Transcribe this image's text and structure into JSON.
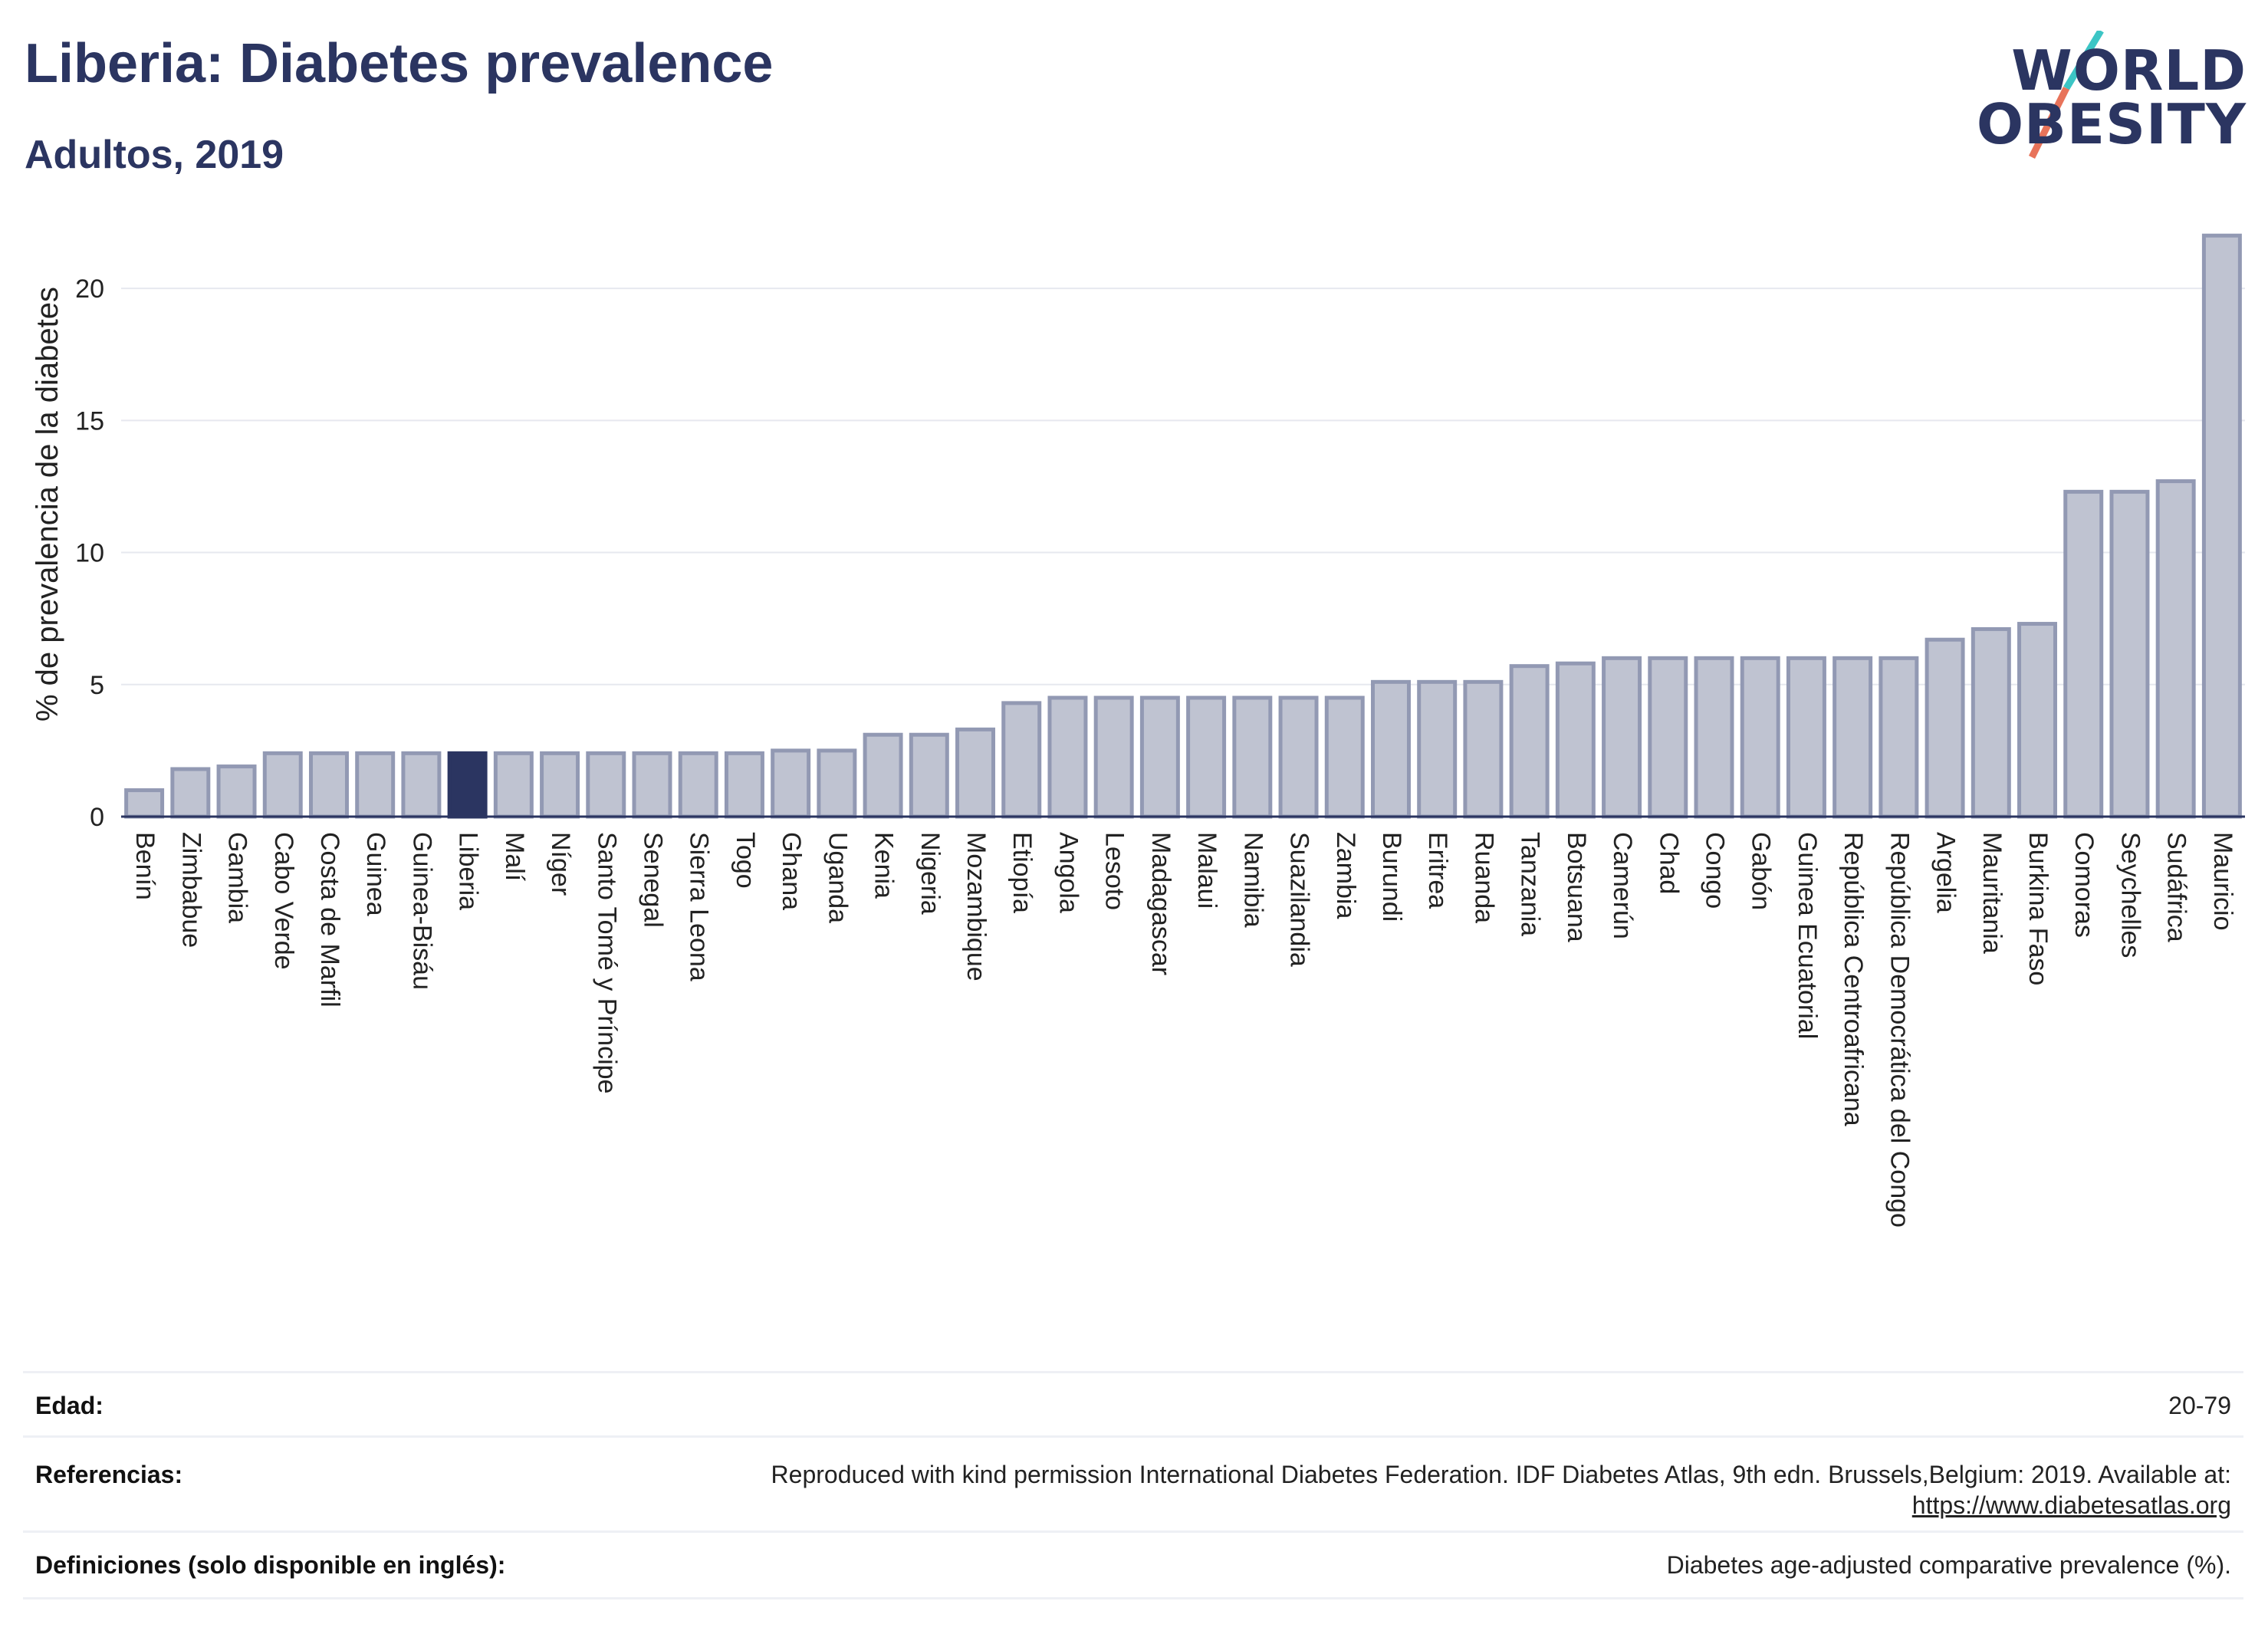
{
  "header": {
    "title": "Liberia: Diabetes prevalence",
    "subtitle": "Adultos, 2019"
  },
  "logo": {
    "line1": "WORLD",
    "line2": "OBESITY",
    "slash_colors": [
      "#3cc5c5",
      "#e8735a"
    ]
  },
  "colors": {
    "bar": "#bfc3d1",
    "bar_border": "#9299b3",
    "highlight": "#2b3561",
    "grid": "#e6e8ef",
    "axis": "#2b3561"
  },
  "chart_data": {
    "type": "bar",
    "title": "Liberia: Diabetes prevalence",
    "subtitle": "Adultos, 2019",
    "ylabel": "% de prevalencia de la diabetes",
    "xlabel": "",
    "ylim": [
      0,
      22.5
    ],
    "yticks": [
      0,
      5,
      10,
      15,
      20
    ],
    "grid": true,
    "highlight": "Liberia",
    "categories": [
      "Benín",
      "Zimbabue",
      "Gambia",
      "Cabo Verde",
      "Costa de Marfil",
      "Guinea",
      "Guinea-Bisáu",
      "Liberia",
      "Malí",
      "Níger",
      "Santo Tomé y Príncipe",
      "Senegal",
      "Sierra Leona",
      "Togo",
      "Ghana",
      "Uganda",
      "Kenia",
      "Nigeria",
      "Mozambique",
      "Etiopía",
      "Angola",
      "Lesoto",
      "Madagascar",
      "Malaui",
      "Namibia",
      "Suazilandia",
      "Zambia",
      "Burundi",
      "Eritrea",
      "Ruanda",
      "Tanzania",
      "Botsuana",
      "Camerún",
      "Chad",
      "Congo",
      "Gabón",
      "Guinea Ecuatorial",
      "República Centroafricana",
      "República Democrática del Congo",
      "Argelia",
      "Mauritania",
      "Burkina Faso",
      "Comoras",
      "Seychelles",
      "Sudáfrica",
      "Mauricio"
    ],
    "values": [
      1.0,
      1.8,
      1.9,
      2.4,
      2.4,
      2.4,
      2.4,
      2.4,
      2.4,
      2.4,
      2.4,
      2.4,
      2.4,
      2.4,
      2.5,
      2.5,
      3.1,
      3.1,
      3.3,
      4.3,
      4.5,
      4.5,
      4.5,
      4.5,
      4.5,
      4.5,
      4.5,
      5.1,
      5.1,
      5.1,
      5.7,
      5.8,
      6.0,
      6.0,
      6.0,
      6.0,
      6.0,
      6.0,
      6.0,
      6.7,
      7.1,
      7.3,
      12.3,
      12.3,
      12.7,
      22.0
    ]
  },
  "meta": {
    "age_label": "Edad:",
    "age_value": "20-79",
    "refs_label": "Referencias:",
    "refs_value": "Reproduced with kind permission International Diabetes Federation. IDF Diabetes Atlas, 9th edn. Brussels,Belgium: 2019. Available at:",
    "refs_link": "https://www.diabetesatlas.org",
    "defs_label": "Definiciones (solo disponible en inglés):",
    "defs_value": "Diabetes age-adjusted comparative prevalence (%)."
  }
}
